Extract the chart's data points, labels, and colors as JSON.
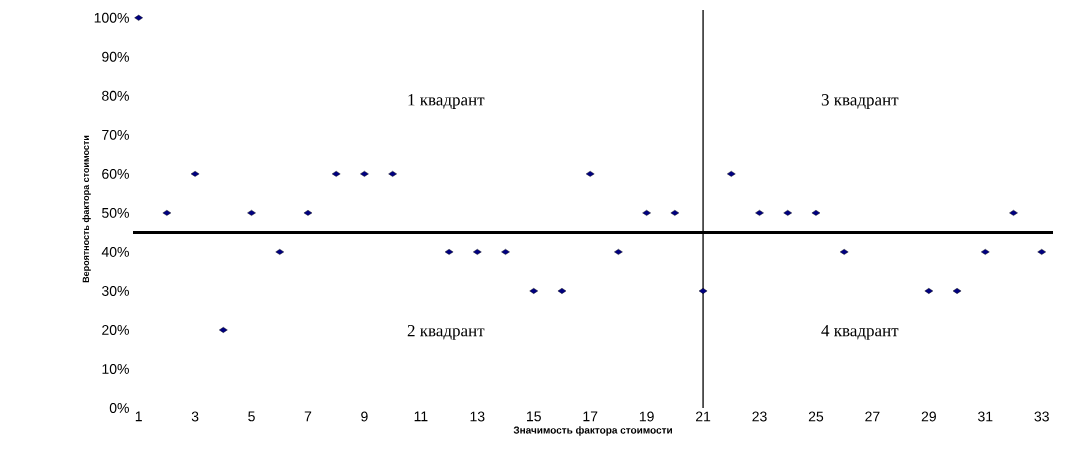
{
  "chart_data": {
    "type": "scatter",
    "xlabel": "Значимость фактора стоимости",
    "ylabel": "Вероятность фактора стоимости",
    "x": [
      1,
      2,
      3,
      4,
      5,
      6,
      7,
      8,
      9,
      10,
      11,
      12,
      13,
      14,
      15,
      16,
      17,
      18,
      19,
      20,
      21,
      22,
      23,
      24,
      25,
      26,
      27,
      28,
      29,
      30,
      31,
      32,
      33
    ],
    "values": [
      100,
      50,
      60,
      20,
      50,
      40,
      50,
      60,
      60,
      60,
      null,
      40,
      40,
      40,
      30,
      30,
      60,
      40,
      50,
      50,
      30,
      60,
      50,
      50,
      50,
      40,
      null,
      null,
      30,
      30,
      40,
      50,
      40
    ],
    "color": "#000080",
    "marker": "diamond",
    "xlim": [
      0.8,
      33.4
    ],
    "ylim": [
      0,
      102
    ],
    "xticks": [
      1,
      3,
      5,
      7,
      9,
      11,
      13,
      15,
      17,
      19,
      21,
      23,
      25,
      27,
      29,
      31,
      33
    ],
    "yticks": [
      {
        "value": 0,
        "label": "0%"
      },
      {
        "value": 10,
        "label": "10%"
      },
      {
        "value": 20,
        "label": "20%"
      },
      {
        "value": 30,
        "label": "30%"
      },
      {
        "value": 40,
        "label": "40%"
      },
      {
        "value": 50,
        "label": "50%"
      },
      {
        "value": 60,
        "label": "60%"
      },
      {
        "value": 70,
        "label": "70%"
      },
      {
        "value": 80,
        "label": "80%"
      },
      {
        "value": 90,
        "label": "90%"
      },
      {
        "value": 100,
        "label": "100%"
      }
    ],
    "ref_lines": [
      {
        "axis": "y",
        "value": 45,
        "color": "#000000"
      },
      {
        "axis": "x",
        "value": 21,
        "color": "#000000"
      }
    ],
    "annotations": [
      "1 квадрант",
      "3 квадрант",
      "2 квадрант",
      "4 квадрант"
    ]
  }
}
